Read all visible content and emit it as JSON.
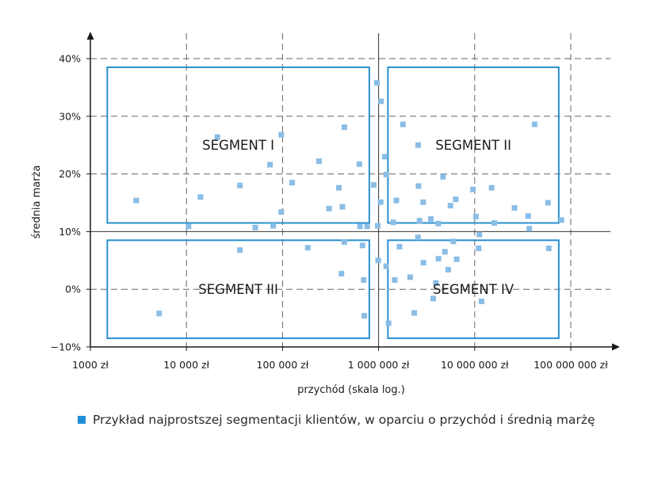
{
  "colors": {
    "point": "#8bbde5",
    "segment_border": "#2a8fd0",
    "grid": "#666666",
    "axis": "#1a1a1a",
    "caption_bullet": "#1f8fd8"
  },
  "caption": {
    "bullet_icon": "square-bullet-icon",
    "text": "Przykład najprostszej segmentacji klientów, w oparciu o przychód i średnią marżę"
  },
  "chart_data": {
    "type": "scatter",
    "title": "",
    "xlabel": "przychód (skala log.)",
    "ylabel": "średnia marża",
    "x_scale": "log",
    "xlim": [
      1000,
      100000000
    ],
    "ylim": [
      -10,
      40
    ],
    "x_ticks": [
      1000,
      10000,
      100000,
      1000000,
      10000000,
      100000000
    ],
    "x_tick_labels": [
      "1000 zł",
      "10 000 zł",
      "100 000 zł",
      "1 000 000 zł",
      "10 000 000 zł",
      "100 000 000 zł"
    ],
    "y_ticks": [
      -10,
      0,
      10,
      20,
      30,
      40
    ],
    "y_tick_labels": [
      "−10%",
      "0%",
      "10%",
      "20%",
      "30%",
      "40%"
    ],
    "grid": true,
    "threshold_lines": {
      "x": 1000000,
      "y": 10
    },
    "segments": [
      {
        "label": "SEGMENT I",
        "x_range": [
          1500,
          800000
        ],
        "y_range": [
          11.5,
          38.5
        ]
      },
      {
        "label": "SEGMENT II",
        "x_range": [
          1250000,
          75000000
        ],
        "y_range": [
          11.5,
          38.5
        ]
      },
      {
        "label": "SEGMENT III",
        "x_range": [
          1500,
          800000
        ],
        "y_range": [
          -8.5,
          8.5
        ]
      },
      {
        "label": "SEGMENT IV",
        "x_range": [
          1250000,
          75000000
        ],
        "y_range": [
          -8.5,
          8.5
        ]
      }
    ],
    "points": [
      {
        "x": 3000,
        "y": 15.4
      },
      {
        "x": 5200,
        "y": -4.2
      },
      {
        "x": 10500,
        "y": 10.9
      },
      {
        "x": 14000,
        "y": 16.0
      },
      {
        "x": 21000,
        "y": 26.4
      },
      {
        "x": 36000,
        "y": 18.0
      },
      {
        "x": 36000,
        "y": 6.8
      },
      {
        "x": 52000,
        "y": 10.7
      },
      {
        "x": 74000,
        "y": 21.6
      },
      {
        "x": 80000,
        "y": 11.0
      },
      {
        "x": 97000,
        "y": 26.8
      },
      {
        "x": 97000,
        "y": 13.4
      },
      {
        "x": 126000,
        "y": 18.5
      },
      {
        "x": 183000,
        "y": 7.2
      },
      {
        "x": 240000,
        "y": 22.2
      },
      {
        "x": 305000,
        "y": 14.0
      },
      {
        "x": 385000,
        "y": 17.6
      },
      {
        "x": 410000,
        "y": 2.7
      },
      {
        "x": 420000,
        "y": 14.3
      },
      {
        "x": 440000,
        "y": 28.1
      },
      {
        "x": 440000,
        "y": 8.2
      },
      {
        "x": 630000,
        "y": 21.7
      },
      {
        "x": 640000,
        "y": 10.9
      },
      {
        "x": 680000,
        "y": 7.6
      },
      {
        "x": 700000,
        "y": 1.6
      },
      {
        "x": 710000,
        "y": -4.6
      },
      {
        "x": 760000,
        "y": 10.9
      },
      {
        "x": 890000,
        "y": 18.1
      },
      {
        "x": 960000,
        "y": 35.8
      },
      {
        "x": 980000,
        "y": 11.0
      },
      {
        "x": 990000,
        "y": 5.0
      },
      {
        "x": 1050000,
        "y": 15.1
      },
      {
        "x": 1060000,
        "y": 32.6
      },
      {
        "x": 1160000,
        "y": 23.0
      },
      {
        "x": 1200000,
        "y": 19.9
      },
      {
        "x": 1200000,
        "y": 4.0
      },
      {
        "x": 1270000,
        "y": -5.9
      },
      {
        "x": 1420000,
        "y": 11.6
      },
      {
        "x": 1470000,
        "y": 1.6
      },
      {
        "x": 1530000,
        "y": 15.4
      },
      {
        "x": 1650000,
        "y": 7.4
      },
      {
        "x": 1790000,
        "y": 28.6
      },
      {
        "x": 2130000,
        "y": 2.1
      },
      {
        "x": 2350000,
        "y": -4.1
      },
      {
        "x": 2570000,
        "y": 9.0
      },
      {
        "x": 2580000,
        "y": 25.0
      },
      {
        "x": 2600000,
        "y": 17.9
      },
      {
        "x": 2670000,
        "y": 11.9
      },
      {
        "x": 2910000,
        "y": 15.1
      },
      {
        "x": 2930000,
        "y": 4.6
      },
      {
        "x": 3500000,
        "y": 12.2
      },
      {
        "x": 3700000,
        "y": -1.6
      },
      {
        "x": 3950000,
        "y": 1.1
      },
      {
        "x": 4200000,
        "y": 5.3
      },
      {
        "x": 4180000,
        "y": 11.4
      },
      {
        "x": 4680000,
        "y": 19.5
      },
      {
        "x": 4900000,
        "y": 6.5
      },
      {
        "x": 5300000,
        "y": 3.4
      },
      {
        "x": 5600000,
        "y": 14.5
      },
      {
        "x": 6000000,
        "y": 8.3
      },
      {
        "x": 6350000,
        "y": 15.6
      },
      {
        "x": 6500000,
        "y": 5.2
      },
      {
        "x": 9600000,
        "y": 17.3
      },
      {
        "x": 10300000,
        "y": 12.6
      },
      {
        "x": 11000000,
        "y": 7.1
      },
      {
        "x": 11200000,
        "y": 9.5
      },
      {
        "x": 11800000,
        "y": -2.1
      },
      {
        "x": 15000000,
        "y": 17.6
      },
      {
        "x": 16000000,
        "y": 11.5
      },
      {
        "x": 26000000,
        "y": 14.1
      },
      {
        "x": 36000000,
        "y": 12.7
      },
      {
        "x": 37000000,
        "y": 10.5
      },
      {
        "x": 42000000,
        "y": 28.6
      },
      {
        "x": 58000000,
        "y": 15.0
      },
      {
        "x": 59000000,
        "y": 7.1
      },
      {
        "x": 80000000,
        "y": 12.0
      }
    ]
  }
}
